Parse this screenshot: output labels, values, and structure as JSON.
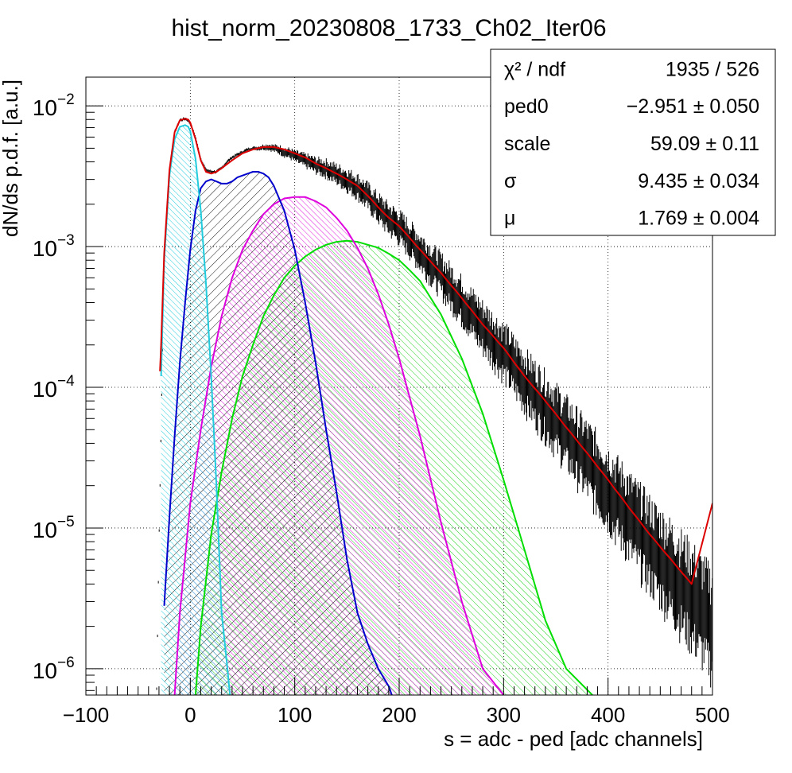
{
  "chart_data": {
    "type": "line",
    "title": "hist_norm_20230808_1733_Ch02_Iter06",
    "xlabel": "s = adc - ped [adc channels]",
    "ylabel": "dN/ds p.d.f. [a.u.]",
    "xlim": [
      -100,
      500
    ],
    "ylim": [
      6.5e-07,
      0.016
    ],
    "yscale": "log",
    "grid": true,
    "x_ticks": [
      -100,
      0,
      100,
      200,
      300,
      400,
      500
    ],
    "x_tick_labels": [
      "−100",
      "0",
      "100",
      "200",
      "300",
      "400",
      "500"
    ],
    "y_ticks": [
      {
        "value": 1e-06,
        "mantissa": "10",
        "exp": "−6"
      },
      {
        "value": 1e-05,
        "mantissa": "10",
        "exp": "−5"
      },
      {
        "value": 0.0001,
        "mantissa": "10",
        "exp": "−4"
      },
      {
        "value": 0.001,
        "mantissa": "10",
        "exp": "−3"
      },
      {
        "value": 0.01,
        "mantissa": "10",
        "exp": "−2"
      }
    ],
    "stats_box": {
      "position": "top-right",
      "rows": [
        {
          "label": "χ² / ndf",
          "value": "1935 / 526"
        },
        {
          "label": "ped0",
          "value": "−2.951 ± 0.050"
        },
        {
          "label": "scale",
          "value": "59.09 ± 0.11"
        },
        {
          "label": "σ",
          "value": "9.435 ± 0.034"
        },
        {
          "label": "μ",
          "value": "1.769 ± 0.004"
        }
      ]
    },
    "colors": {
      "data": "#000000",
      "total_fit": "#dd0000",
      "pedestal": "#22ccdd",
      "pe1": "#0000cc",
      "pe2": "#dd00dd",
      "pe3": "#00dd00",
      "hatch_pe1": "#000000"
    },
    "series": [
      {
        "key": "data",
        "x": [
          -33,
          -30,
          -25,
          -20,
          -15,
          -10,
          -5,
          -3,
          0,
          5,
          10,
          15,
          20,
          25,
          30,
          35,
          40,
          45,
          50,
          55,
          60,
          65,
          70,
          75,
          80,
          85,
          90,
          95,
          100,
          110,
          120,
          130,
          140,
          150,
          160,
          170,
          180,
          190,
          200,
          220,
          240,
          260,
          280,
          300,
          320,
          340,
          360,
          380,
          400,
          420,
          440,
          460,
          480,
          500
        ],
        "y": [
          3e-07,
          8e-06,
          0.0008,
          0.0035,
          0.0065,
          0.0079,
          0.0081,
          0.008,
          0.0075,
          0.006,
          0.0042,
          0.0035,
          0.0034,
          0.0034,
          0.0036,
          0.004,
          0.0043,
          0.0045,
          0.0047,
          0.0049,
          0.005,
          0.005,
          0.0051,
          0.0051,
          0.005,
          0.0049,
          0.0047,
          0.0046,
          0.0044,
          0.0041,
          0.0038,
          0.0036,
          0.0033,
          0.003,
          0.0027,
          0.0023,
          0.0019,
          0.0016,
          0.0014,
          0.00095,
          0.00065,
          0.00043,
          0.00028,
          0.00019,
          0.00012,
          8e-05,
          5.2e-05,
          3.4e-05,
          2.2e-05,
          1.4e-05,
          9e-06,
          6e-06,
          4e-06,
          2.6e-06
        ]
      },
      {
        "key": "total_fit",
        "x": [
          -29,
          -28,
          -25,
          -20,
          -15,
          -10,
          -5,
          -2,
          0,
          5,
          10,
          15,
          20,
          25,
          30,
          40,
          50,
          60,
          70,
          80,
          90,
          100,
          110,
          120,
          130,
          140,
          150,
          160,
          170,
          180,
          190,
          200,
          220,
          240,
          260,
          280,
          300,
          320,
          340,
          360,
          380,
          400,
          420,
          440,
          460,
          480,
          500
        ],
        "y": [
          0.00013,
          0.0002,
          0.0009,
          0.0035,
          0.0065,
          0.0079,
          0.0081,
          0.008,
          0.0076,
          0.0058,
          0.0041,
          0.0034,
          0.0033,
          0.0034,
          0.0036,
          0.0041,
          0.0046,
          0.0049,
          0.0051,
          0.0051,
          0.0049,
          0.0046,
          0.0043,
          0.0039,
          0.0036,
          0.0033,
          0.003,
          0.0027,
          0.0023,
          0.0019,
          0.0016,
          0.0014,
          0.00095,
          0.00065,
          0.00043,
          0.00028,
          0.00019,
          0.00012,
          8e-05,
          5.2e-05,
          3.4e-05,
          2.2e-05,
          1.4e-05,
          9e-06,
          6e-06,
          4e-06,
          1.5e-05
        ]
      },
      {
        "key": "pedestal",
        "x": [
          -28,
          -25,
          -20,
          -15,
          -10,
          -5,
          -2,
          0,
          5,
          10,
          15,
          20,
          25,
          30,
          35,
          38
        ],
        "y": [
          0.00012,
          0.0008,
          0.0032,
          0.0058,
          0.0071,
          0.0073,
          0.0071,
          0.0066,
          0.0042,
          0.0018,
          0.00055,
          0.00012,
          2e-05,
          2.5e-06,
          1.1e-06,
          6.5e-07
        ]
      },
      {
        "key": "pe1",
        "x": [
          -25,
          -20,
          -15,
          -10,
          -5,
          0,
          5,
          10,
          15,
          20,
          25,
          30,
          35,
          40,
          45,
          50,
          55,
          60,
          65,
          70,
          75,
          80,
          90,
          100,
          110,
          120,
          130,
          140,
          150,
          160,
          170,
          180,
          190,
          193
        ],
        "y": [
          2.8e-06,
          1.2e-05,
          4.5e-05,
          0.00015,
          0.0004,
          0.00095,
          0.0018,
          0.0026,
          0.0029,
          0.003,
          0.0029,
          0.0028,
          0.0028,
          0.0029,
          0.0031,
          0.0032,
          0.0033,
          0.0034,
          0.0034,
          0.0033,
          0.0031,
          0.0027,
          0.0018,
          0.00095,
          0.0004,
          0.00015,
          5e-05,
          1.8e-05,
          6e-06,
          2.5e-06,
          1.5e-06,
          1e-06,
          7.5e-07,
          6.5e-07
        ]
      },
      {
        "key": "pe2",
        "x": [
          -15,
          -10,
          0,
          10,
          20,
          30,
          40,
          50,
          60,
          70,
          80,
          90,
          100,
          110,
          120,
          130,
          140,
          150,
          160,
          170,
          180,
          190,
          200,
          220,
          240,
          260,
          280,
          300
        ],
        "y": [
          6.5e-07,
          2.5e-06,
          1.5e-05,
          5e-05,
          0.00014,
          0.00032,
          0.0006,
          0.00095,
          0.0013,
          0.0017,
          0.002,
          0.0022,
          0.00225,
          0.00225,
          0.0021,
          0.0019,
          0.0016,
          0.0013,
          0.00098,
          0.0007,
          0.00046,
          0.00028,
          0.00016,
          4.5e-05,
          1.1e-05,
          3e-06,
          1e-06,
          6.5e-07
        ]
      },
      {
        "key": "pe3",
        "x": [
          5,
          10,
          20,
          30,
          40,
          50,
          60,
          70,
          80,
          90,
          100,
          110,
          120,
          130,
          140,
          150,
          160,
          170,
          180,
          190,
          200,
          210,
          220,
          240,
          260,
          280,
          300,
          320,
          340,
          360,
          385
        ],
        "y": [
          6.5e-07,
          2e-06,
          9e-06,
          2.5e-05,
          6e-05,
          0.00012,
          0.0002,
          0.00032,
          0.00045,
          0.0006,
          0.00073,
          0.00085,
          0.00095,
          0.00103,
          0.00108,
          0.0011,
          0.00108,
          0.00103,
          0.00098,
          0.00089,
          0.0008,
          0.00068,
          0.00057,
          0.00033,
          0.00016,
          6.5e-05,
          2.2e-05,
          7e-06,
          2.2e-06,
          1e-06,
          6.5e-07
        ]
      }
    ]
  }
}
